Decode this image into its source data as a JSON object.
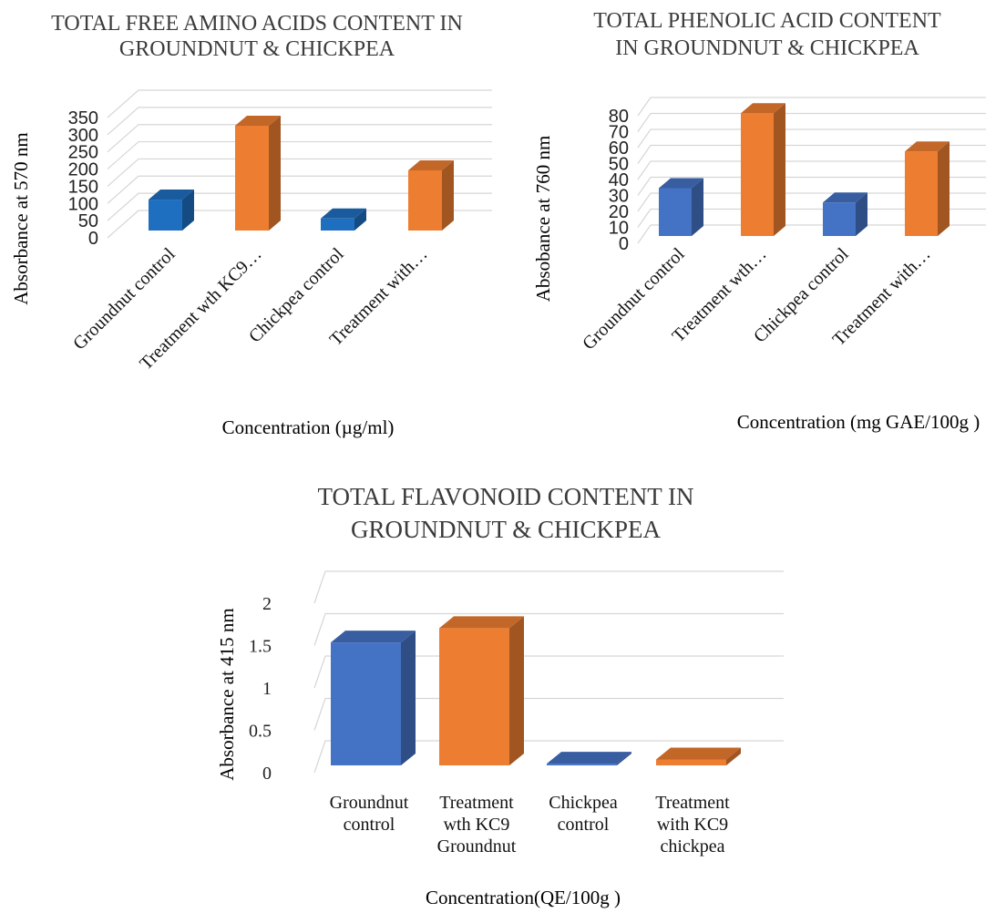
{
  "colors": {
    "groundnut_control": "#1f6fc0",
    "groundnut_control_alt": "#4472c4",
    "treatment": "#ed7d31",
    "grid": "#d6d6d6"
  },
  "chart_data": [
    {
      "type": "bar",
      "title_lines": [
        "TOTAL FREE AMINO ACIDS CONTENT IN",
        "GROUNDNUT & CHICKPEA"
      ],
      "xlabel": "Concentration (µg/ml)",
      "ylabel": "Absorbance at 570 nm",
      "categories": [
        "Groundnut control",
        "Treatment wth KC9…",
        "Chickpea control",
        "Treatment with…"
      ],
      "values": [
        90,
        305,
        35,
        175
      ],
      "bar_colors": [
        "#1f6fc0",
        "#ed7d31",
        "#1f6fc0",
        "#ed7d31"
      ],
      "yticks": [
        "0",
        "50",
        "100",
        "150",
        "200",
        "250",
        "300",
        "350"
      ],
      "ylim": [
        0,
        350
      ],
      "grid": true,
      "three_d": true
    },
    {
      "type": "bar",
      "title_lines": [
        "TOTAL PHENOLIC ACID CONTENT",
        "IN GROUNDNUT & CHICKPEA"
      ],
      "xlabel": "Concentration (mg GAE/100g )",
      "ylabel": "Absobance at 760 nm",
      "categories": [
        "Groundnut control",
        "Treatment wth…",
        "Chickpea control",
        "Treatment with…"
      ],
      "values": [
        30,
        77,
        21,
        53
      ],
      "bar_colors": [
        "#4472c4",
        "#ed7d31",
        "#4472c4",
        "#ed7d31"
      ],
      "yticks": [
        "0",
        "10",
        "20",
        "30",
        "40",
        "50",
        "60",
        "70",
        "80"
      ],
      "ylim": [
        0,
        80
      ],
      "grid": true,
      "three_d": true
    },
    {
      "type": "bar",
      "title_lines": [
        "TOTAL FLAVONOID CONTENT IN",
        "GROUNDNUT & CHICKPEA"
      ],
      "xlabel": "Concentration(QE/100g )",
      "ylabel": "Absorbance at 415 nm",
      "categories": [
        [
          "Groundnut",
          "control"
        ],
        [
          "Treatment",
          "wth KC9",
          "Groundnut"
        ],
        [
          "Chickpea",
          "control"
        ],
        [
          "Treatment",
          "with KC9",
          "chickpea"
        ]
      ],
      "values": [
        1.45,
        1.62,
        0.02,
        0.07
      ],
      "bar_colors": [
        "#4472c4",
        "#ed7d31",
        "#4472c4",
        "#ed7d31"
      ],
      "yticks": [
        "0",
        "0.5",
        "1",
        "1.5",
        "2"
      ],
      "ylim": [
        0,
        2
      ],
      "grid": true,
      "three_d": true
    }
  ]
}
